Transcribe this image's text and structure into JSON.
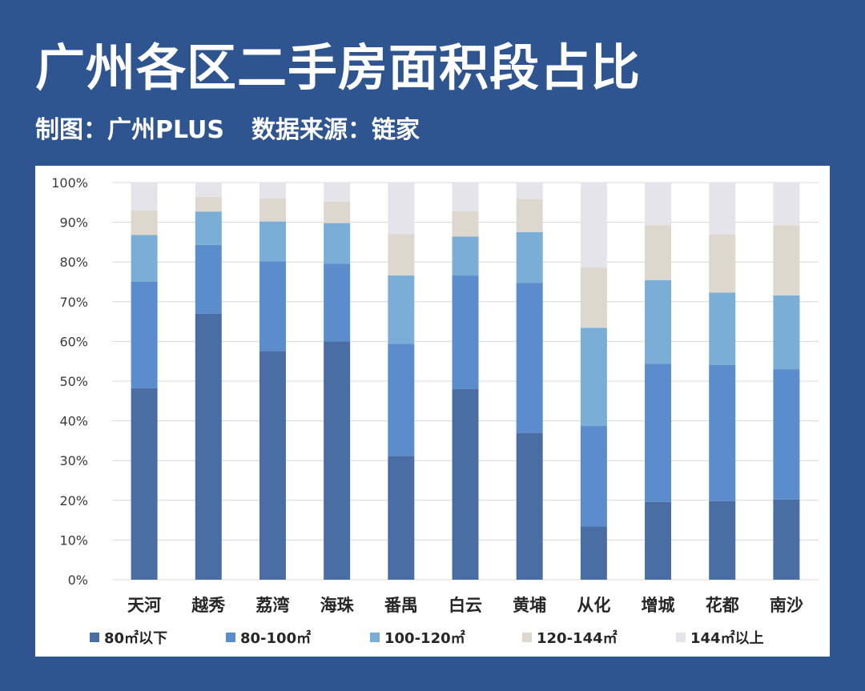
{
  "title": "广州各区二手房面积段占比",
  "subtitle": {
    "maker": "制图：广州PLUS",
    "source": "数据来源：链家"
  },
  "chart_data": {
    "type": "bar",
    "stacked": true,
    "categories": [
      "天河",
      "越秀",
      "荔湾",
      "海珠",
      "番禺",
      "白云",
      "黄埔",
      "从化",
      "增城",
      "花都",
      "南沙"
    ],
    "series": [
      {
        "name": "80㎡以下",
        "color": "#4a6ea4",
        "values": [
          48.2,
          67.0,
          57.6,
          60.0,
          31.2,
          48.0,
          36.9,
          13.4,
          19.6,
          19.8,
          20.2
        ]
      },
      {
        "name": "80-100㎡",
        "color": "#5b8ccb",
        "values": [
          26.8,
          17.3,
          22.6,
          19.6,
          28.2,
          28.6,
          37.8,
          25.3,
          34.8,
          34.3,
          32.8
        ]
      },
      {
        "name": "100-120㎡",
        "color": "#7aaed7",
        "values": [
          11.8,
          8.4,
          10.0,
          10.2,
          17.2,
          9.8,
          12.8,
          24.7,
          21.0,
          18.2,
          18.6
        ]
      },
      {
        "name": "120-144㎡",
        "color": "#ddd7ce",
        "values": [
          6.2,
          3.7,
          5.8,
          5.4,
          10.4,
          6.4,
          8.4,
          15.2,
          13.8,
          14.6,
          17.6
        ]
      },
      {
        "name": "144㎡以上",
        "color": "#e5e4eb",
        "values": [
          7.0,
          3.6,
          4.0,
          4.8,
          13.0,
          7.2,
          4.1,
          21.4,
          10.8,
          13.1,
          10.8
        ]
      }
    ],
    "ylim": [
      0,
      100
    ],
    "yticks": [
      "0%",
      "10%",
      "20%",
      "30%",
      "40%",
      "50%",
      "60%",
      "70%",
      "80%",
      "90%",
      "100%"
    ],
    "grid": true,
    "legend_position": "bottom"
  }
}
